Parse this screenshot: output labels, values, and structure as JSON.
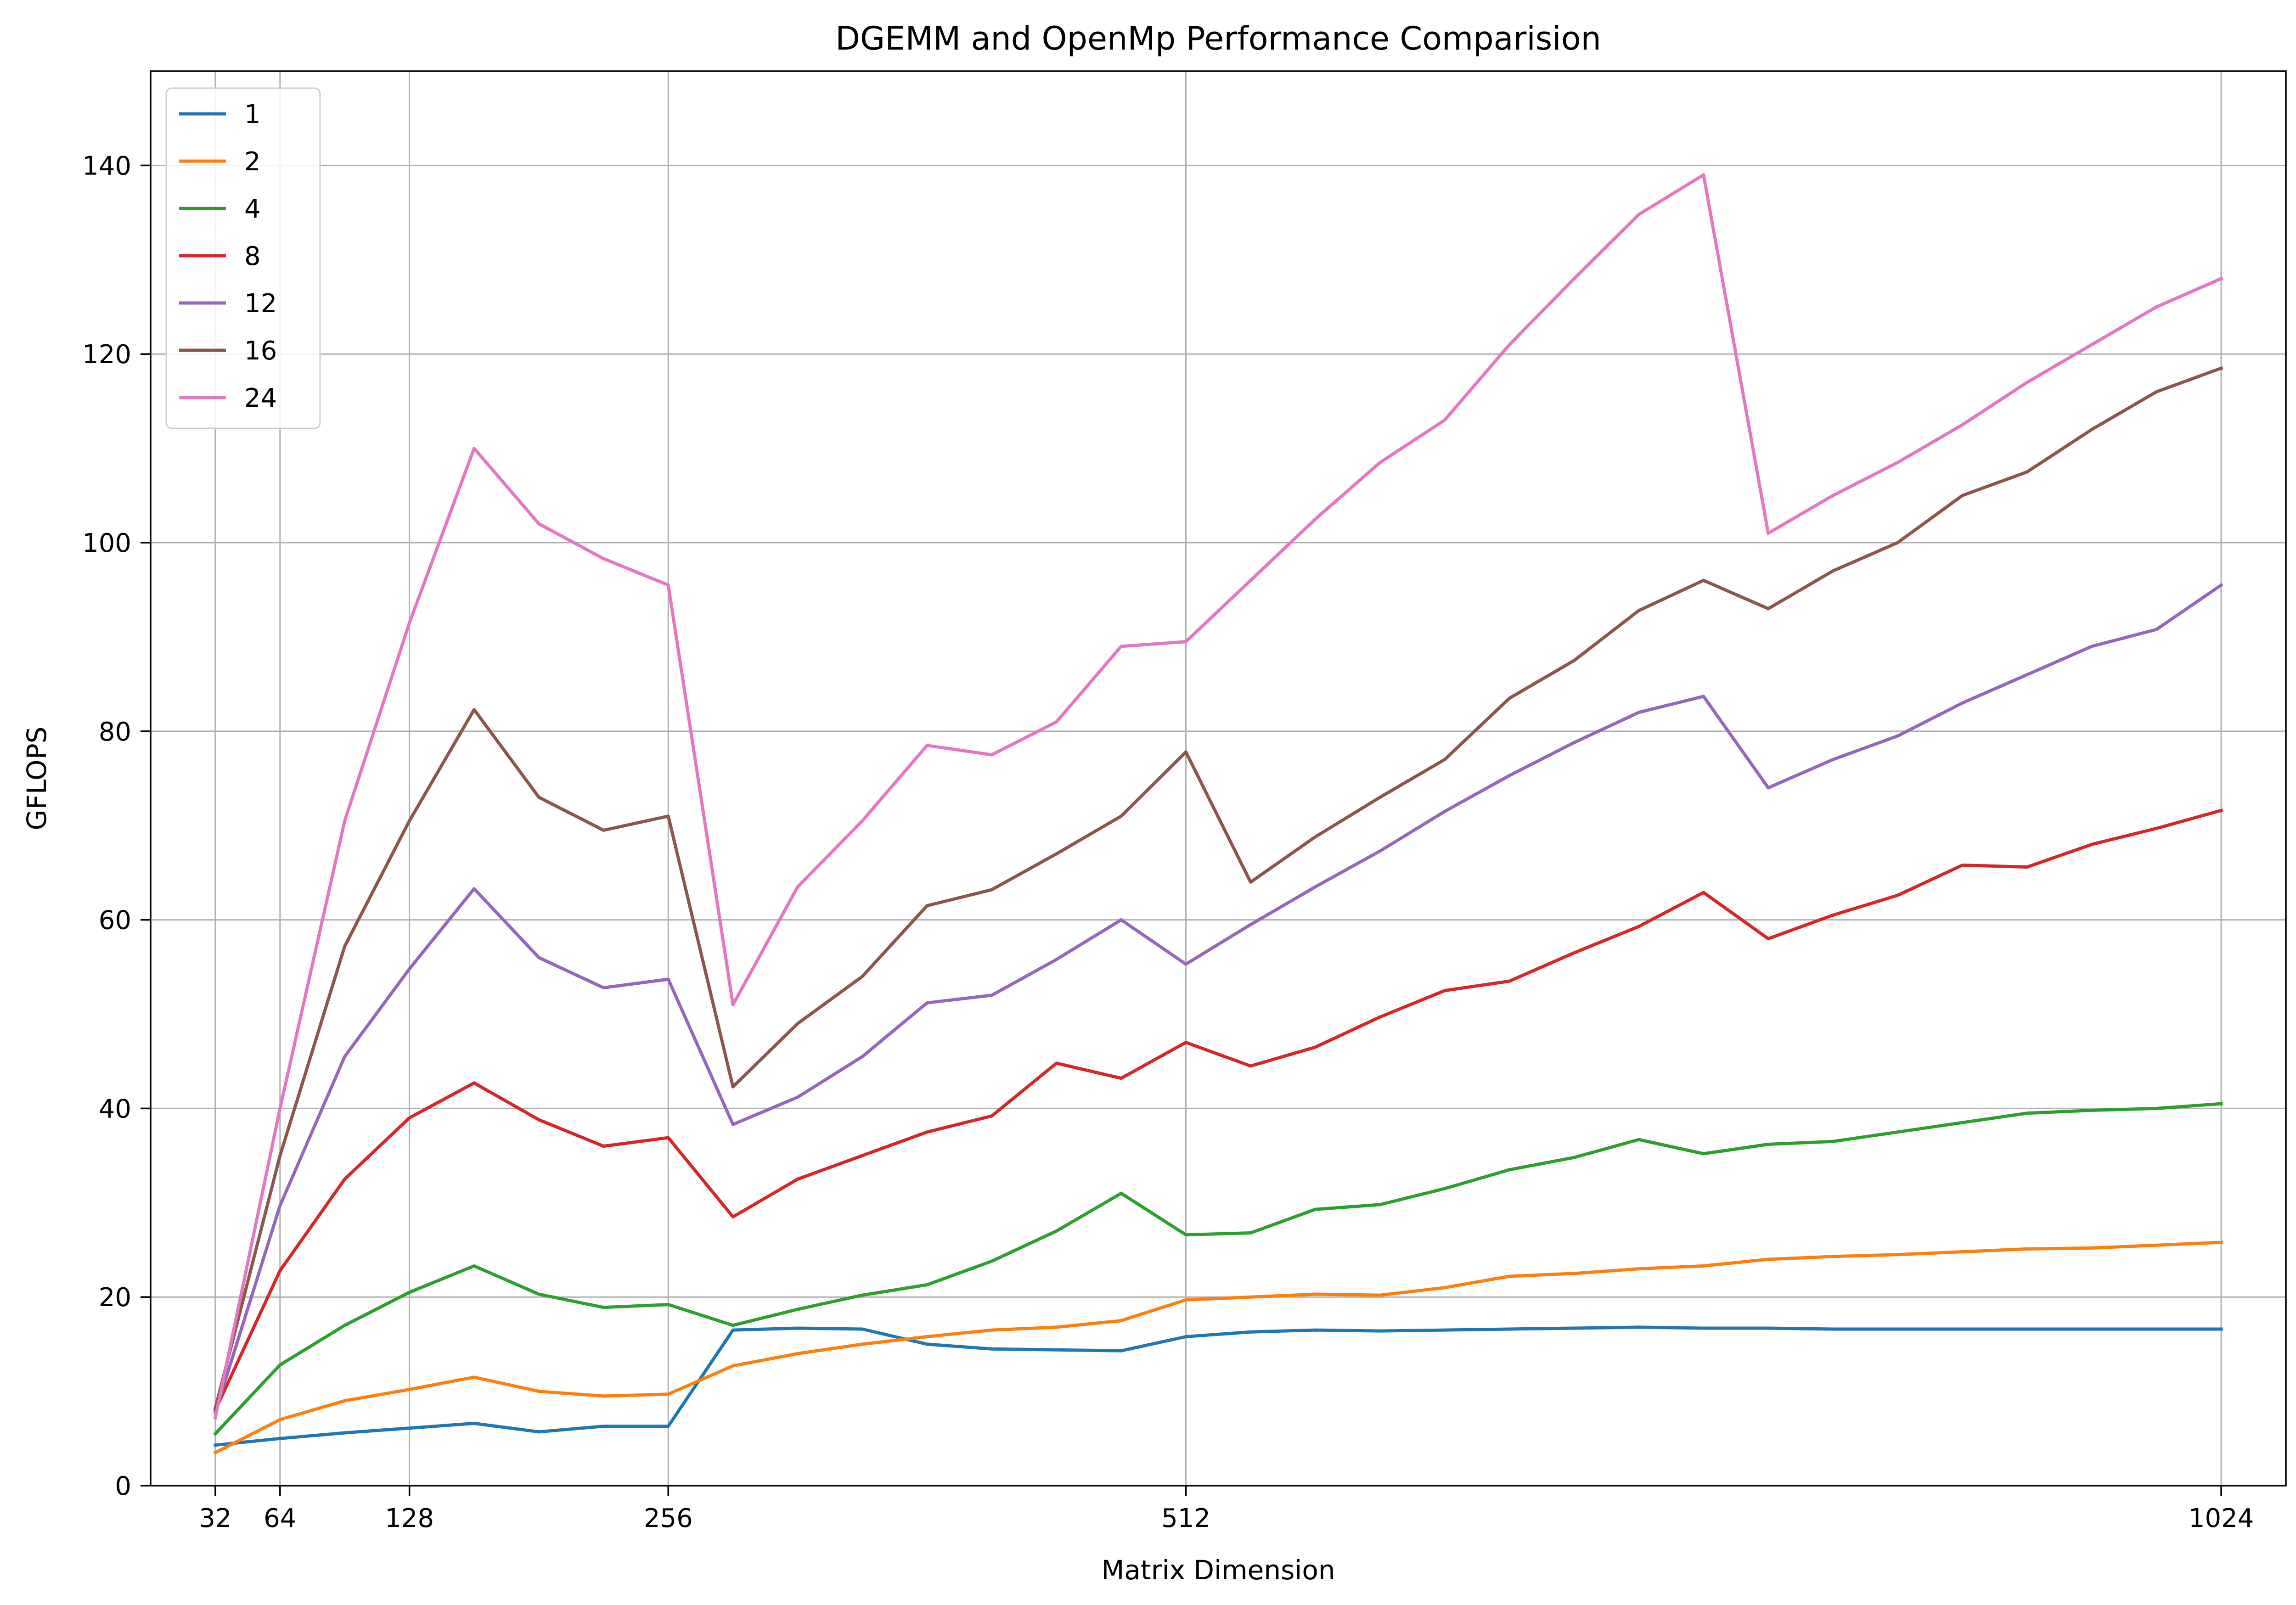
{
  "chart_data": {
    "type": "line",
    "title": "DGEMM and OpenMp Performance Comparision",
    "xlabel": "Matrix Dimension",
    "ylabel": "GFLOPS",
    "xlim": [
      0,
      1056
    ],
    "ylim": [
      0,
      150
    ],
    "xticks": [
      32,
      64,
      128,
      256,
      512,
      1024
    ],
    "yticks": [
      0,
      20,
      40,
      60,
      80,
      100,
      120,
      140
    ],
    "grid": true,
    "legend_position": "top-left",
    "x": [
      32,
      64,
      96,
      128,
      160,
      192,
      224,
      256,
      288,
      320,
      352,
      384,
      416,
      448,
      480,
      512,
      544,
      576,
      608,
      640,
      672,
      704,
      736,
      768,
      800,
      832,
      864,
      896,
      928,
      960,
      992,
      1024
    ],
    "series": [
      {
        "name": "1",
        "color": "#1f77b4",
        "values": [
          4.3,
          5.0,
          5.6,
          6.1,
          6.6,
          5.7,
          6.3,
          6.3,
          16.5,
          16.7,
          16.6,
          15.0,
          14.5,
          14.4,
          14.3,
          15.8,
          16.3,
          16.5,
          16.4,
          16.5,
          16.6,
          16.7,
          16.8,
          16.7,
          16.7,
          16.6,
          16.6,
          16.6,
          16.6,
          16.6,
          16.6,
          16.6
        ]
      },
      {
        "name": "2",
        "color": "#ff7f0e",
        "values": [
          3.5,
          7.0,
          9.0,
          10.2,
          11.5,
          10.0,
          9.5,
          9.7,
          12.7,
          14.0,
          15.0,
          15.8,
          16.5,
          16.8,
          17.5,
          19.7,
          20.0,
          20.3,
          20.2,
          21.0,
          22.2,
          22.5,
          23.0,
          23.3,
          24.0,
          24.3,
          24.5,
          24.8,
          25.1,
          25.2,
          25.5,
          25.8
        ]
      },
      {
        "name": "4",
        "color": "#2ca02c",
        "values": [
          5.5,
          12.8,
          17.0,
          20.5,
          23.3,
          20.3,
          18.9,
          19.2,
          17.0,
          18.7,
          20.2,
          21.3,
          23.8,
          27.0,
          31.0,
          26.6,
          26.8,
          29.3,
          29.8,
          31.5,
          33.5,
          34.8,
          36.7,
          35.2,
          36.2,
          36.5,
          37.5,
          38.5,
          39.5,
          39.8,
          40.0,
          40.5
        ]
      },
      {
        "name": "8",
        "color": "#d62728",
        "values": [
          8.0,
          22.8,
          32.5,
          39.0,
          42.7,
          38.8,
          36.0,
          36.9,
          28.5,
          32.5,
          35.0,
          37.5,
          39.2,
          44.8,
          43.2,
          47.0,
          44.5,
          46.5,
          49.7,
          52.5,
          53.5,
          56.5,
          59.3,
          62.9,
          58.0,
          60.5,
          62.6,
          65.8,
          65.6,
          68.0,
          69.7,
          71.6
        ]
      },
      {
        "name": "12",
        "color": "#9467bd",
        "values": [
          7.8,
          29.7,
          45.5,
          54.8,
          63.3,
          56.0,
          52.8,
          53.7,
          38.3,
          41.2,
          45.5,
          51.2,
          52.0,
          55.8,
          60.0,
          55.3,
          59.5,
          63.5,
          67.3,
          71.5,
          75.3,
          78.8,
          82.0,
          83.7,
          74.0,
          77.0,
          79.5,
          83.0,
          86.0,
          89.0,
          90.8,
          95.5
        ]
      },
      {
        "name": "16",
        "color": "#8c564b",
        "values": [
          8.2,
          35.0,
          57.2,
          70.5,
          82.3,
          73.0,
          69.5,
          71.0,
          42.3,
          49.0,
          54.0,
          61.5,
          63.2,
          67.0,
          71.0,
          77.8,
          64.0,
          68.8,
          73.0,
          77.0,
          83.5,
          87.5,
          92.8,
          96.0,
          93.0,
          97.0,
          100.0,
          105.0,
          107.5,
          112.0,
          116.0,
          118.5
        ]
      },
      {
        "name": "24",
        "color": "#e377c2",
        "values": [
          7.2,
          40.0,
          70.5,
          91.5,
          110.0,
          102.0,
          98.3,
          95.5,
          51.0,
          63.5,
          70.5,
          78.5,
          77.5,
          81.0,
          89.0,
          89.5,
          96.0,
          102.5,
          108.5,
          113.0,
          121.0,
          128.0,
          134.8,
          139.0,
          101.0,
          105.0,
          108.5,
          112.5,
          117.0,
          121.0,
          125.0,
          128.0
        ]
      }
    ]
  }
}
